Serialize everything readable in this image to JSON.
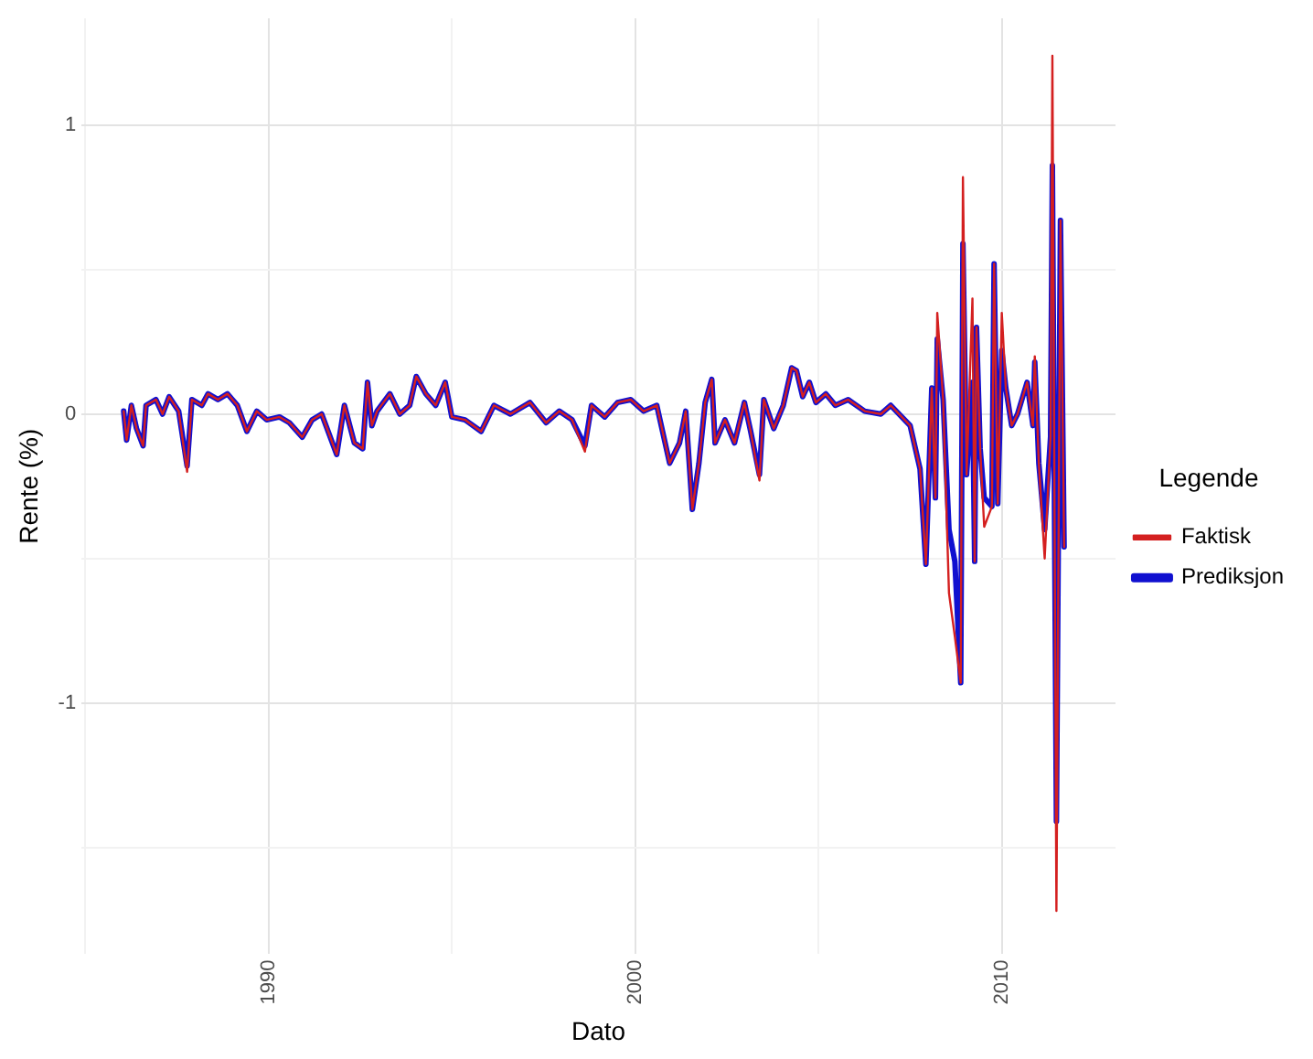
{
  "chart_data": {
    "type": "line",
    "xlabel": "Dato",
    "ylabel": "Rente (%)",
    "legend_title": "Legende",
    "legend": "right",
    "grid": true,
    "marker": "none",
    "line_style": "solid",
    "xlim": [
      1984.9,
      2013.1
    ],
    "ylim": [
      -1.87,
      1.37
    ],
    "xticks": [
      {
        "value": 1985,
        "label": null
      },
      1990,
      {
        "value": 1995,
        "label": null
      },
      2000,
      {
        "value": 2005,
        "label": null
      },
      2010
    ],
    "yticks": [
      {
        "value": -1.5,
        "label": null
      },
      -1,
      {
        "value": -0.5,
        "label": null
      },
      0,
      {
        "value": 0.5,
        "label": null
      },
      1
    ],
    "x": [
      1986.05,
      1986.13,
      1986.26,
      1986.4,
      1986.58,
      1986.66,
      1986.93,
      1987.11,
      1987.29,
      1987.55,
      1987.78,
      1987.91,
      1988.18,
      1988.35,
      1988.62,
      1988.88,
      1989.15,
      1989.41,
      1989.68,
      1989.95,
      1990.3,
      1990.57,
      1990.92,
      1991.19,
      1991.45,
      1991.86,
      1992.07,
      1992.34,
      1992.57,
      1992.7,
      1992.82,
      1992.96,
      1993.31,
      1993.58,
      1993.85,
      1994.03,
      1994.29,
      1994.56,
      1994.82,
      1995.0,
      1995.36,
      1995.8,
      1996.15,
      1996.6,
      1997.13,
      1997.57,
      1997.93,
      1998.28,
      1998.63,
      1998.81,
      1999.17,
      1999.52,
      1999.88,
      2000.23,
      2000.59,
      2000.94,
      2001.21,
      2001.38,
      2001.56,
      2001.74,
      2001.91,
      2002.09,
      2002.18,
      2002.45,
      2002.71,
      2002.98,
      2003.15,
      2003.39,
      2003.51,
      2003.78,
      2004.04,
      2004.27,
      2004.4,
      2004.57,
      2004.75,
      2004.93,
      2005.2,
      2005.46,
      2005.81,
      2006.26,
      2006.7,
      2006.97,
      2007.5,
      2007.77,
      2007.93,
      2008.09,
      2008.19,
      2008.24,
      2008.4,
      2008.56,
      2008.72,
      2008.88,
      2008.94,
      2009.04,
      2009.2,
      2009.26,
      2009.31,
      2009.41,
      2009.52,
      2009.73,
      2009.79,
      2009.89,
      2010.0,
      2010.11,
      2010.27,
      2010.43,
      2010.69,
      2010.85,
      2010.9,
      2011.01,
      2011.17,
      2011.33,
      2011.38,
      2011.49,
      2011.6,
      2011.7
    ],
    "series": [
      {
        "name": "Faktisk",
        "color": "#d42020",
        "values": [
          0.01,
          -0.09,
          0.03,
          -0.05,
          -0.11,
          0.03,
          0.05,
          0,
          0.06,
          0.01,
          -0.2,
          0.05,
          0.03,
          0.07,
          0.05,
          0.07,
          0.03,
          -0.06,
          0.01,
          -0.02,
          -0.01,
          -0.03,
          -0.08,
          -0.02,
          0,
          -0.14,
          0.03,
          -0.1,
          -0.12,
          0.11,
          -0.04,
          0.01,
          0.07,
          0,
          0.03,
          0.13,
          0.07,
          0.03,
          0.11,
          -0.01,
          -0.02,
          -0.06,
          0.03,
          0,
          0.04,
          -0.03,
          0.01,
          -0.02,
          -0.13,
          0.03,
          -0.01,
          0.04,
          0.05,
          0.01,
          0.03,
          -0.17,
          -0.1,
          0.01,
          -0.33,
          -0.17,
          0.04,
          0.12,
          -0.1,
          -0.02,
          -0.1,
          0.04,
          -0.06,
          -0.23,
          0.05,
          -0.05,
          0.03,
          0.16,
          0.15,
          0.06,
          0.11,
          0.04,
          0.07,
          0.03,
          0.05,
          0.01,
          0,
          0.03,
          -0.04,
          -0.19,
          -0.52,
          0.09,
          -0.29,
          0.35,
          0.05,
          -0.62,
          -0.77,
          -0.93,
          0.82,
          -0.21,
          0.4,
          -0.51,
          0.3,
          -0.12,
          -0.39,
          -0.32,
          0.52,
          -0.31,
          0.35,
          0.09,
          -0.04,
          0,
          0.11,
          -0.04,
          0.2,
          -0.17,
          -0.5,
          -0.08,
          1.24,
          -1.72,
          0.67,
          -0.46
        ]
      },
      {
        "name": "Prediksjon",
        "color": "#1010d0",
        "values": [
          0.01,
          -0.09,
          0.03,
          -0.05,
          -0.11,
          0.03,
          0.05,
          0,
          0.06,
          0.01,
          -0.18,
          0.05,
          0.03,
          0.07,
          0.05,
          0.07,
          0.03,
          -0.06,
          0.01,
          -0.02,
          -0.01,
          -0.03,
          -0.08,
          -0.02,
          0,
          -0.14,
          0.03,
          -0.1,
          -0.12,
          0.11,
          -0.04,
          0.01,
          0.07,
          0,
          0.03,
          0.13,
          0.07,
          0.03,
          0.11,
          -0.01,
          -0.02,
          -0.06,
          0.03,
          0,
          0.04,
          -0.03,
          0.01,
          -0.02,
          -0.11,
          0.03,
          -0.01,
          0.04,
          0.05,
          0.01,
          0.03,
          -0.17,
          -0.1,
          0.01,
          -0.33,
          -0.17,
          0.04,
          0.12,
          -0.1,
          -0.02,
          -0.1,
          0.04,
          -0.06,
          -0.21,
          0.05,
          -0.05,
          0.03,
          0.16,
          0.15,
          0.06,
          0.11,
          0.04,
          0.07,
          0.03,
          0.05,
          0.01,
          0,
          0.03,
          -0.04,
          -0.19,
          -0.52,
          0.09,
          -0.29,
          0.26,
          0.05,
          -0.4,
          -0.51,
          -0.93,
          0.59,
          -0.21,
          0.11,
          -0.51,
          0.3,
          -0.12,
          -0.29,
          -0.32,
          0.52,
          -0.31,
          0.22,
          0.09,
          -0.04,
          0,
          0.11,
          -0.04,
          0.18,
          -0.17,
          -0.4,
          -0.08,
          0.86,
          -1.41,
          0.67,
          -0.46
        ]
      }
    ]
  }
}
